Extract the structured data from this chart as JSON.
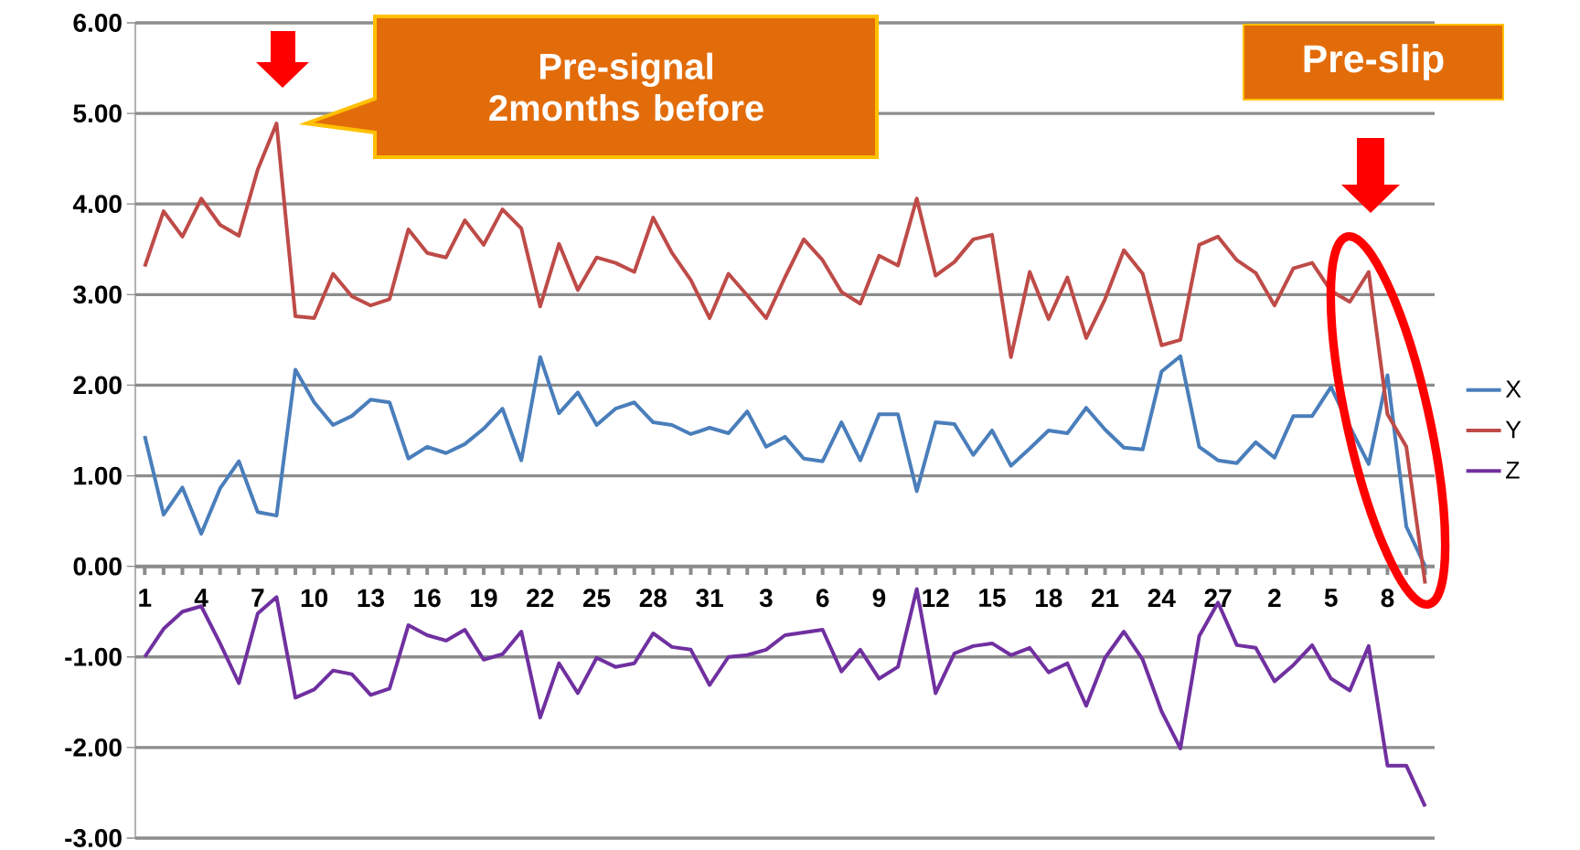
{
  "chart_data": {
    "type": "line",
    "categories": [
      "1",
      null,
      null,
      "4",
      null,
      null,
      "7",
      null,
      null,
      "10",
      null,
      null,
      "13",
      null,
      null,
      "16",
      null,
      null,
      "19",
      null,
      null,
      "22",
      null,
      null,
      "25",
      null,
      null,
      "28",
      null,
      null,
      "31",
      null,
      null,
      "3",
      null,
      null,
      "6",
      null,
      null,
      "9",
      null,
      null,
      "12",
      null,
      null,
      "15",
      null,
      null,
      "18",
      null,
      null,
      "21",
      null,
      null,
      "24",
      null,
      null,
      "27",
      null,
      null,
      "2",
      null,
      null,
      "5",
      null,
      null,
      "8",
      null,
      null
    ],
    "series": [
      {
        "name": "X",
        "color": "#4a7ebb",
        "values": [
          1.44,
          0.57,
          0.87,
          0.36,
          0.86,
          1.16,
          0.6,
          0.56,
          2.17,
          1.81,
          1.56,
          1.66,
          1.84,
          1.81,
          1.19,
          1.32,
          1.25,
          1.35,
          1.52,
          1.74,
          1.17,
          2.31,
          1.69,
          1.92,
          1.56,
          1.74,
          1.81,
          1.59,
          1.56,
          1.46,
          1.53,
          1.47,
          1.71,
          1.32,
          1.43,
          1.19,
          1.16,
          1.59,
          1.17,
          1.68,
          1.68,
          0.83,
          1.59,
          1.57,
          1.23,
          1.5,
          1.11,
          1.3,
          1.5,
          1.47,
          1.75,
          1.51,
          1.31,
          1.29,
          2.15,
          2.32,
          1.32,
          1.17,
          1.14,
          1.37,
          1.2,
          1.66,
          1.66,
          1.98,
          1.54,
          1.13,
          2.11,
          0.44,
          0.0
        ]
      },
      {
        "name": "Y",
        "color": "#be4b48",
        "values": [
          3.31,
          3.92,
          3.64,
          4.06,
          3.77,
          3.65,
          4.38,
          4.89,
          2.76,
          2.74,
          3.23,
          2.98,
          2.88,
          2.95,
          3.72,
          3.46,
          3.41,
          3.82,
          3.55,
          3.94,
          3.73,
          2.87,
          3.56,
          3.05,
          3.41,
          3.35,
          3.25,
          3.85,
          3.46,
          3.16,
          2.74,
          3.23,
          2.99,
          2.74,
          3.19,
          3.61,
          3.38,
          3.03,
          2.9,
          3.43,
          3.32,
          4.06,
          3.21,
          3.36,
          3.61,
          3.66,
          2.31,
          3.25,
          2.73,
          3.19,
          2.52,
          2.95,
          3.49,
          3.23,
          2.44,
          2.5,
          3.55,
          3.64,
          3.38,
          3.24,
          2.88,
          3.29,
          3.35,
          3.04,
          2.92,
          3.25,
          1.68,
          1.32,
          -0.19
        ]
      },
      {
        "name": "Z",
        "color": "#7030a0",
        "values": [
          -1.0,
          -0.69,
          -0.5,
          -0.44,
          -0.85,
          -1.29,
          -0.52,
          -0.34,
          -1.45,
          -1.36,
          -1.15,
          -1.19,
          -1.42,
          -1.35,
          -0.65,
          -0.76,
          -0.82,
          -0.7,
          -1.03,
          -0.97,
          -0.72,
          -1.67,
          -1.07,
          -1.4,
          -1.01,
          -1.11,
          -1.07,
          -0.74,
          -0.89,
          -0.92,
          -1.31,
          -1.0,
          -0.98,
          -0.92,
          -0.76,
          -0.73,
          -0.7,
          -1.16,
          -0.92,
          -1.24,
          -1.11,
          -0.25,
          -1.4,
          -0.96,
          -0.88,
          -0.85,
          -0.98,
          -0.9,
          -1.17,
          -1.07,
          -1.54,
          -1.01,
          -0.72,
          -1.03,
          -1.6,
          -2.01,
          -0.77,
          -0.4,
          -0.87,
          -0.9,
          -1.27,
          -1.09,
          -0.87,
          -1.24,
          -1.37,
          -0.88,
          -2.2,
          -2.2,
          -2.65
        ]
      }
    ],
    "ylim": [
      -3,
      6
    ],
    "yticks": [
      {
        "value": -3,
        "label": "-3.00"
      },
      {
        "value": -2,
        "label": "-2.00"
      },
      {
        "value": -1,
        "label": "-1.00"
      },
      {
        "value": 0,
        "label": "0.00"
      },
      {
        "value": 1,
        "label": "1.00"
      },
      {
        "value": 2,
        "label": "2.00"
      },
      {
        "value": 3,
        "label": "3.00"
      },
      {
        "value": 4,
        "label": "4.00"
      },
      {
        "value": 5,
        "label": "5.00"
      },
      {
        "value": 6,
        "label": "6.00"
      }
    ],
    "grid": "y",
    "legend": "right",
    "marker": "none",
    "annotations": [
      "Pre-signal 2months before",
      "Pre-slip"
    ]
  }
}
